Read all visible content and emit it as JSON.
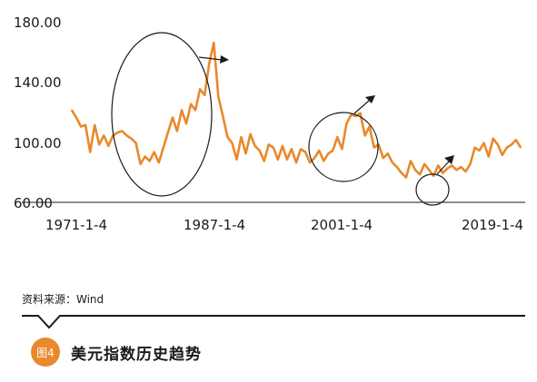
{
  "colors": {
    "accent": "#e8892b",
    "axis": "#1a1a1a",
    "background": "#ffffff"
  },
  "source": "资料来源：Wind",
  "figure": {
    "badge": "图4",
    "title": "美元指数历史趋势"
  },
  "chart_data": {
    "type": "line",
    "title": "美元指数历史趋势",
    "xlabel": "",
    "ylabel": "",
    "ylim": [
      60,
      180
    ],
    "x_range": [
      1971,
      2020.5
    ],
    "yticks": [
      "60.00",
      "100.00",
      "140.00",
      "180.00"
    ],
    "ytick_values": [
      60,
      100,
      140,
      180
    ],
    "xticks": [
      "1971-1-4",
      "1987-1-4",
      "2001-1-4",
      "2019-1-4"
    ],
    "xtick_values": [
      1971,
      1987,
      2001,
      2019
    ],
    "grid": false,
    "series": [
      {
        "x": [
          1971.0,
          1971.5,
          1972.0,
          1972.5,
          1973.0,
          1973.5,
          1974.0,
          1974.5,
          1975.0,
          1975.5,
          1976.0,
          1976.5,
          1977.0,
          1977.5,
          1978.0,
          1978.5,
          1979.0,
          1979.5,
          1980.0,
          1980.5,
          1981.0,
          1981.5,
          1982.0,
          1982.5,
          1983.0,
          1983.5,
          1984.0,
          1984.5,
          1985.0,
          1985.5,
          1986.0,
          1986.5,
          1987.0,
          1987.5,
          1988.0,
          1988.5,
          1989.0,
          1989.5,
          1990.0,
          1990.5,
          1991.0,
          1991.5,
          1992.0,
          1992.5,
          1993.0,
          1993.5,
          1994.0,
          1994.5,
          1995.0,
          1995.5,
          1996.0,
          1996.5,
          1997.0,
          1997.5,
          1998.0,
          1998.5,
          1999.0,
          1999.5,
          2000.0,
          2000.5,
          2001.0,
          2001.5,
          2002.0,
          2002.5,
          2003.0,
          2003.5,
          2004.0,
          2004.5,
          2005.0,
          2005.5,
          2006.0,
          2006.5,
          2007.0,
          2007.5,
          2008.0,
          2008.5,
          2009.0,
          2009.5,
          2010.0,
          2010.5,
          2011.0,
          2011.5,
          2012.0,
          2012.5,
          2013.0,
          2013.5,
          2014.0,
          2014.5,
          2015.0,
          2015.5,
          2016.0,
          2016.5,
          2017.0,
          2017.5,
          2018.0,
          2018.5,
          2019.0,
          2019.5,
          2020.0
        ],
        "values": [
          121,
          116,
          110,
          111,
          93,
          111,
          98,
          104,
          97,
          104,
          106,
          107,
          104,
          102,
          99,
          85,
          90,
          87,
          93,
          86,
          96,
          106,
          116,
          107,
          121,
          112,
          125,
          121,
          135,
          131,
          152,
          166,
          130,
          117,
          103,
          99,
          88,
          103,
          92,
          105,
          97,
          94,
          87,
          98,
          96,
          88,
          97,
          88,
          95,
          86,
          95,
          93,
          86,
          89,
          94,
          87,
          92,
          94,
          103,
          95,
          112,
          118,
          117,
          119,
          104,
          110,
          96,
          98,
          89,
          92,
          86,
          83,
          79,
          76,
          87,
          81,
          78,
          85,
          81,
          77,
          84,
          79,
          82,
          84,
          81,
          83,
          80,
          85,
          96,
          94,
          99,
          90,
          102,
          98,
          91,
          96,
          98,
          101,
          96
        ]
      }
    ],
    "annotations": [
      "ellipse-1974-1988",
      "arrow-1987-peak",
      "circle-2000-2003",
      "arrow-2002",
      "circle-2011",
      "arrow-2011"
    ]
  }
}
